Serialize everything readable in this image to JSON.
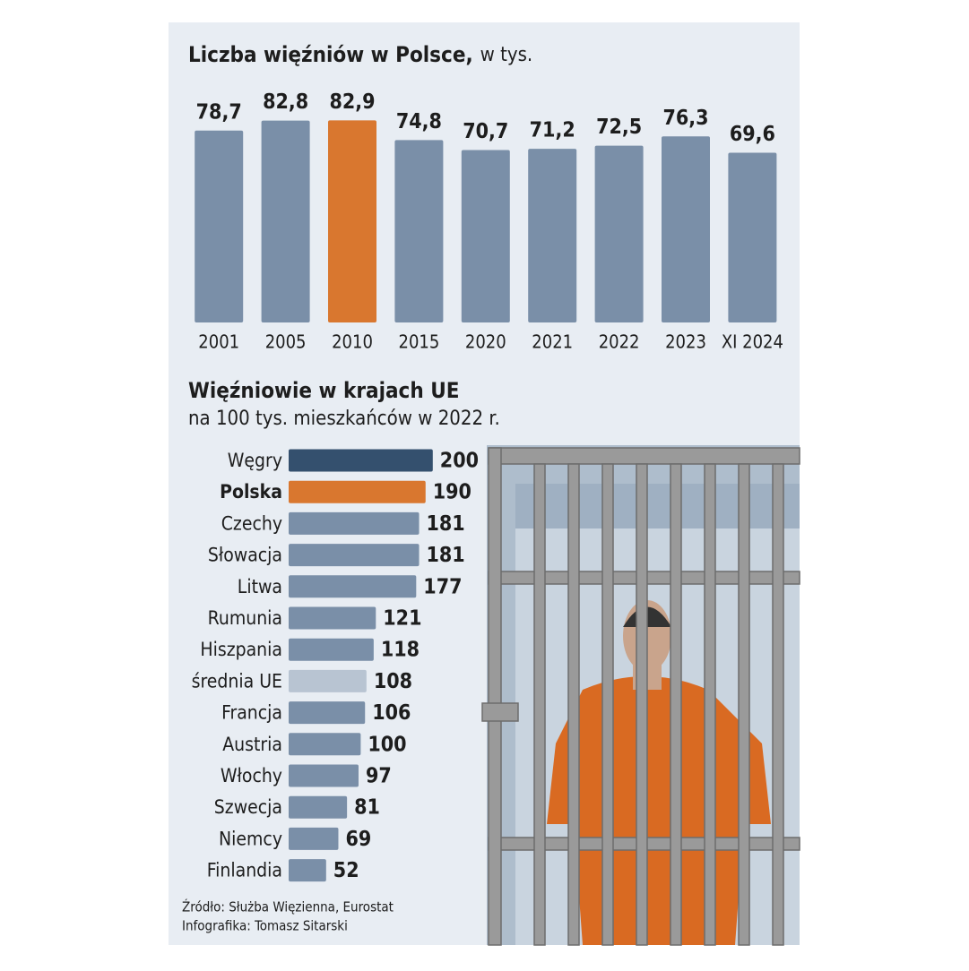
{
  "chart_data": [
    {
      "type": "bar",
      "title": "Liczba więźniów w Polsce,",
      "subtitle": "w tys.",
      "categories": [
        "2001",
        "2005",
        "2010",
        "2015",
        "2020",
        "2021",
        "2022",
        "2023",
        "XI 2024"
      ],
      "values": [
        78.7,
        82.8,
        82.9,
        74.8,
        70.7,
        71.2,
        72.5,
        76.3,
        69.6
      ],
      "value_labels": [
        "78,7",
        "82,8",
        "82,9",
        "74,8",
        "70,7",
        "71,2",
        "72,5",
        "76,3",
        "69,6"
      ],
      "colors": [
        "#7a8fa8",
        "#7a8fa8",
        "#d9772f",
        "#7a8fa8",
        "#7a8fa8",
        "#7a8fa8",
        "#7a8fa8",
        "#7a8fa8",
        "#7a8fa8"
      ],
      "highlight_color": "#d9772f",
      "ylim": [
        0,
        90
      ]
    },
    {
      "type": "hbar",
      "title": "Więźniowie w krajach UE",
      "subtitle": "na 100 tys. mieszkańców w 2022 r.",
      "categories": [
        "Węgry",
        "Polska",
        "Czechy",
        "Słowacja",
        "Litwa",
        "Rumunia",
        "Hiszpania",
        "średnia UE",
        "Francja",
        "Austria",
        "Włochy",
        "Szwecja",
        "Niemcy",
        "Finlandia"
      ],
      "values": [
        200,
        190,
        181,
        181,
        177,
        121,
        118,
        108,
        106,
        100,
        97,
        81,
        69,
        52
      ],
      "colors": [
        "#34506e",
        "#d9772f",
        "#7a8fa8",
        "#7a8fa8",
        "#7a8fa8",
        "#7a8fa8",
        "#7a8fa8",
        "#b8c4d2",
        "#7a8fa8",
        "#7a8fa8",
        "#7a8fa8",
        "#7a8fa8",
        "#7a8fa8",
        "#7a8fa8"
      ],
      "highlight_color": "#d9772f",
      "xlim": [
        0,
        250
      ]
    }
  ],
  "source": "Źródło: Służba Więzienna, Eurostat",
  "credit": "Infografika: Tomasz Sitarski"
}
